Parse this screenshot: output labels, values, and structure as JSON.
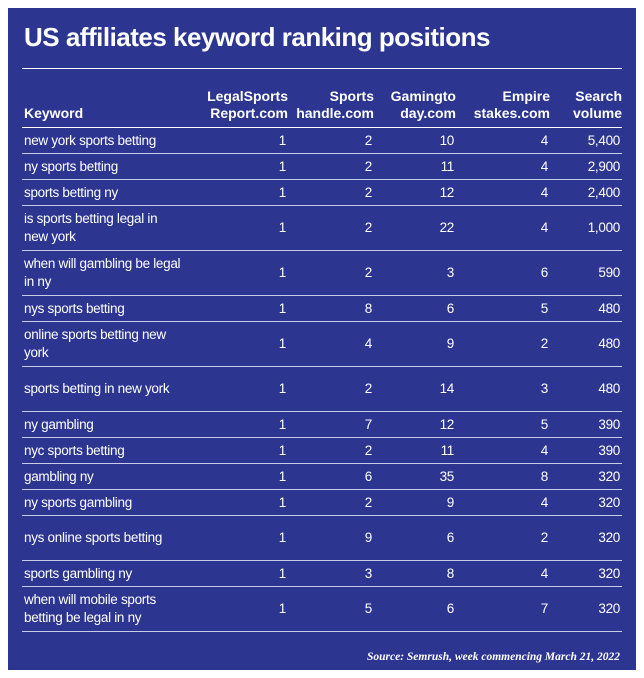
{
  "title": "US affiliates keyword ranking positions",
  "columns": [
    {
      "lines": [
        "Keyword"
      ]
    },
    {
      "lines": [
        "LegalSports",
        "Report.com"
      ]
    },
    {
      "lines": [
        "Sports",
        "handle.com"
      ]
    },
    {
      "lines": [
        "Gamingto",
        "day.com"
      ]
    },
    {
      "lines": [
        "Empire",
        "stakes.com"
      ]
    },
    {
      "lines": [
        "Search",
        "volume"
      ]
    }
  ],
  "rows": [
    {
      "keyword": "new york sports betting",
      "legalsportsreport": "1",
      "sportshandle": "2",
      "gamingtoday": "10",
      "empirestakes": "4",
      "volume": "5,400"
    },
    {
      "keyword": "ny sports betting",
      "legalsportsreport": "1",
      "sportshandle": "2",
      "gamingtoday": "11",
      "empirestakes": "4",
      "volume": "2,900"
    },
    {
      "keyword": "sports betting ny",
      "legalsportsreport": "1",
      "sportshandle": "2",
      "gamingtoday": "12",
      "empirestakes": "4",
      "volume": "2,400"
    },
    {
      "keyword": "is sports betting legal in new york",
      "legalsportsreport": "1",
      "sportshandle": "2",
      "gamingtoday": "22",
      "empirestakes": "4",
      "volume": "1,000"
    },
    {
      "keyword": "when will gambling be legal in ny",
      "legalsportsreport": "1",
      "sportshandle": "2",
      "gamingtoday": "3",
      "empirestakes": "6",
      "volume": "590"
    },
    {
      "keyword": "nys sports betting",
      "legalsportsreport": "1",
      "sportshandle": "8",
      "gamingtoday": "6",
      "empirestakes": "5",
      "volume": "480"
    },
    {
      "keyword": "online sports betting new york",
      "legalsportsreport": "1",
      "sportshandle": "4",
      "gamingtoday": "9",
      "empirestakes": "2",
      "volume": "480"
    },
    {
      "keyword": "sports betting in new york",
      "legalsportsreport": "1",
      "sportshandle": "2",
      "gamingtoday": "14",
      "empirestakes": "3",
      "volume": "480"
    },
    {
      "keyword": "ny gambling",
      "legalsportsreport": "1",
      "sportshandle": "7",
      "gamingtoday": "12",
      "empirestakes": "5",
      "volume": "390"
    },
    {
      "keyword": "nyc sports betting",
      "legalsportsreport": "1",
      "sportshandle": "2",
      "gamingtoday": "11",
      "empirestakes": "4",
      "volume": "390"
    },
    {
      "keyword": "gambling ny",
      "legalsportsreport": "1",
      "sportshandle": "6",
      "gamingtoday": "35",
      "empirestakes": "8",
      "volume": "320"
    },
    {
      "keyword": "ny sports gambling",
      "legalsportsreport": "1",
      "sportshandle": "2",
      "gamingtoday": "9",
      "empirestakes": "4",
      "volume": "320"
    },
    {
      "keyword": "nys online sports betting",
      "legalsportsreport": "1",
      "sportshandle": "9",
      "gamingtoday": "6",
      "empirestakes": "2",
      "volume": "320"
    },
    {
      "keyword": "sports gambling ny",
      "legalsportsreport": "1",
      "sportshandle": "3",
      "gamingtoday": "8",
      "empirestakes": "4",
      "volume": "320"
    },
    {
      "keyword": "when will mobile sports betting be legal in ny",
      "legalsportsreport": "1",
      "sportshandle": "5",
      "gamingtoday": "6",
      "empirestakes": "7",
      "volume": "320"
    }
  ],
  "source": "Source: Semrush, week commencing March 21, 2022",
  "colors": {
    "background": "#2c3590",
    "text": "#ffffff",
    "row_rule": "#c9cce6"
  }
}
